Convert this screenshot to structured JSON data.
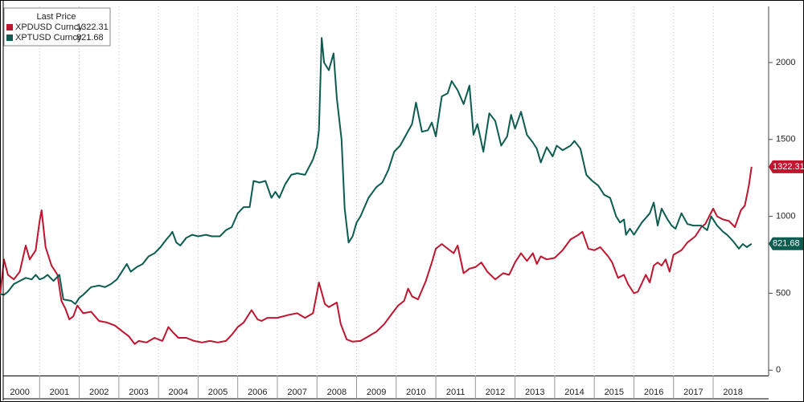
{
  "chart_data": {
    "type": "line",
    "legend_title": "Last Price",
    "xlim": [
      2000,
      2019.4
    ],
    "xticks": [
      2000,
      2001,
      2002,
      2003,
      2004,
      2005,
      2006,
      2007,
      2008,
      2009,
      2010,
      2011,
      2012,
      2013,
      2014,
      2015,
      2016,
      2017,
      2018
    ],
    "ylim": [
      -35,
      2365
    ],
    "yticks": [
      0,
      500,
      1000,
      1500,
      2000
    ],
    "xgrid": true,
    "legend": "upper left",
    "series": [
      {
        "name": "XPDUSD Curncy",
        "color": "#c0142f",
        "x": [
          2000.0,
          2000.1,
          2000.2,
          2000.35,
          2000.5,
          2000.65,
          2000.75,
          2000.9,
          2001.0,
          2001.05,
          2001.15,
          2001.3,
          2001.45,
          2001.55,
          2001.65,
          2001.75,
          2001.85,
          2001.95,
          2002.1,
          2002.3,
          2002.5,
          2002.7,
          2002.9,
          2003.1,
          2003.25,
          2003.4,
          2003.5,
          2003.7,
          2003.9,
          2004.1,
          2004.25,
          2004.35,
          2004.5,
          2004.7,
          2004.9,
          2005.1,
          2005.3,
          2005.5,
          2005.7,
          2005.85,
          2006.0,
          2006.15,
          2006.35,
          2006.5,
          2006.6,
          2006.75,
          2007.0,
          2007.3,
          2007.5,
          2007.7,
          2007.9,
          2008.05,
          2008.2,
          2008.3,
          2008.5,
          2008.6,
          2008.75,
          2008.9,
          2009.1,
          2009.3,
          2009.5,
          2009.7,
          2009.9,
          2010.05,
          2010.2,
          2010.3,
          2010.4,
          2010.55,
          2010.75,
          2010.9,
          2011.0,
          2011.15,
          2011.3,
          2011.45,
          2011.55,
          2011.7,
          2011.85,
          2012.0,
          2012.15,
          2012.3,
          2012.5,
          2012.7,
          2012.85,
          2013.0,
          2013.15,
          2013.3,
          2013.45,
          2013.55,
          2013.65,
          2013.8,
          2014.0,
          2014.2,
          2014.4,
          2014.6,
          2014.7,
          2014.85,
          2015.0,
          2015.15,
          2015.35,
          2015.45,
          2015.6,
          2015.75,
          2015.85,
          2016.0,
          2016.1,
          2016.3,
          2016.4,
          2016.5,
          2016.6,
          2016.7,
          2016.8,
          2016.9,
          2017.0,
          2017.2,
          2017.35,
          2017.55,
          2017.7,
          2017.8,
          2018.0,
          2018.1,
          2018.25,
          2018.4,
          2018.55,
          2018.7,
          2018.8,
          2018.9,
          2018.97
        ],
        "values": [
          480,
          720,
          620,
          590,
          640,
          810,
          720,
          780,
          970,
          1040,
          800,
          680,
          620,
          450,
          400,
          330,
          350,
          420,
          370,
          380,
          320,
          310,
          290,
          250,
          220,
          170,
          190,
          180,
          210,
          190,
          280,
          250,
          210,
          210,
          190,
          180,
          190,
          180,
          190,
          230,
          280,
          310,
          390,
          330,
          320,
          340,
          340,
          360,
          370,
          340,
          370,
          570,
          430,
          410,
          440,
          300,
          200,
          185,
          190,
          220,
          250,
          300,
          370,
          420,
          450,
          530,
          480,
          460,
          580,
          700,
          790,
          820,
          790,
          760,
          810,
          630,
          660,
          670,
          700,
          640,
          590,
          630,
          620,
          700,
          760,
          710,
          760,
          690,
          740,
          720,
          730,
          780,
          850,
          880,
          900,
          790,
          780,
          800,
          740,
          700,
          600,
          620,
          560,
          500,
          510,
          620,
          570,
          680,
          700,
          680,
          720,
          640,
          750,
          780,
          830,
          870,
          930,
          950,
          1050,
          1000,
          980,
          970,
          930,
          1040,
          1070,
          1200,
          1322.31
        ]
      },
      {
        "name": "XPTUSD Curncy",
        "color": "#0c5c50",
        "x": [
          2000.0,
          2000.1,
          2000.2,
          2000.35,
          2000.5,
          2000.65,
          2000.8,
          2000.9,
          2001.0,
          2001.1,
          2001.2,
          2001.35,
          2001.5,
          2001.6,
          2001.8,
          2001.9,
          2002.0,
          2002.1,
          2002.3,
          2002.5,
          2002.65,
          2002.8,
          2002.95,
          2003.1,
          2003.2,
          2003.3,
          2003.45,
          2003.6,
          2003.75,
          2003.9,
          2004.05,
          2004.2,
          2004.3,
          2004.35,
          2004.45,
          2004.55,
          2004.7,
          2004.85,
          2005.0,
          2005.2,
          2005.35,
          2005.55,
          2005.7,
          2005.85,
          2006.0,
          2006.15,
          2006.3,
          2006.4,
          2006.55,
          2006.7,
          2006.85,
          2006.95,
          2007.05,
          2007.2,
          2007.35,
          2007.5,
          2007.7,
          2007.9,
          2008.0,
          2008.05,
          2008.12,
          2008.18,
          2008.3,
          2008.42,
          2008.5,
          2008.62,
          2008.7,
          2008.8,
          2008.9,
          2009.0,
          2009.1,
          2009.3,
          2009.5,
          2009.65,
          2009.8,
          2009.95,
          2010.1,
          2010.25,
          2010.4,
          2010.5,
          2010.65,
          2010.8,
          2010.9,
          2011.0,
          2011.15,
          2011.3,
          2011.4,
          2011.55,
          2011.7,
          2011.85,
          2011.95,
          2012.05,
          2012.2,
          2012.35,
          2012.5,
          2012.65,
          2012.8,
          2012.9,
          2013.0,
          2013.15,
          2013.3,
          2013.45,
          2013.55,
          2013.65,
          2013.8,
          2013.95,
          2014.05,
          2014.2,
          2014.4,
          2014.5,
          2014.65,
          2014.8,
          2014.95,
          2015.1,
          2015.25,
          2015.4,
          2015.55,
          2015.65,
          2015.75,
          2015.8,
          2015.9,
          2016.0,
          2016.2,
          2016.4,
          2016.5,
          2016.6,
          2016.7,
          2016.85,
          2016.95,
          2017.05,
          2017.2,
          2017.35,
          2017.5,
          2017.7,
          2017.85,
          2017.95,
          2018.1,
          2018.25,
          2018.35,
          2018.5,
          2018.65,
          2018.75,
          2018.85,
          2018.97
        ],
        "values": [
          495,
          490,
          510,
          560,
          580,
          600,
          590,
          620,
          590,
          600,
          620,
          580,
          620,
          460,
          450,
          430,
          470,
          490,
          540,
          550,
          540,
          560,
          590,
          650,
          690,
          640,
          670,
          690,
          740,
          760,
          800,
          850,
          880,
          900,
          830,
          810,
          860,
          880,
          870,
          880,
          870,
          870,
          910,
          930,
          1020,
          1060,
          1060,
          1230,
          1220,
          1230,
          1120,
          1160,
          1120,
          1210,
          1270,
          1280,
          1270,
          1370,
          1450,
          1560,
          2160,
          2000,
          1950,
          2060,
          1770,
          1500,
          1050,
          830,
          870,
          960,
          1000,
          1120,
          1190,
          1220,
          1300,
          1420,
          1460,
          1530,
          1600,
          1740,
          1550,
          1560,
          1610,
          1520,
          1780,
          1800,
          1880,
          1820,
          1730,
          1850,
          1530,
          1600,
          1420,
          1670,
          1620,
          1460,
          1520,
          1660,
          1570,
          1680,
          1530,
          1480,
          1440,
          1350,
          1450,
          1390,
          1460,
          1430,
          1460,
          1490,
          1440,
          1270,
          1230,
          1200,
          1140,
          1120,
          1000,
          960,
          980,
          880,
          920,
          880,
          960,
          1020,
          1090,
          940,
          1050,
          980,
          940,
          920,
          1020,
          950,
          940,
          940,
          910,
          1000,
          940,
          900,
          880,
          840,
          790,
          820,
          800,
          821.68
        ]
      }
    ]
  }
}
